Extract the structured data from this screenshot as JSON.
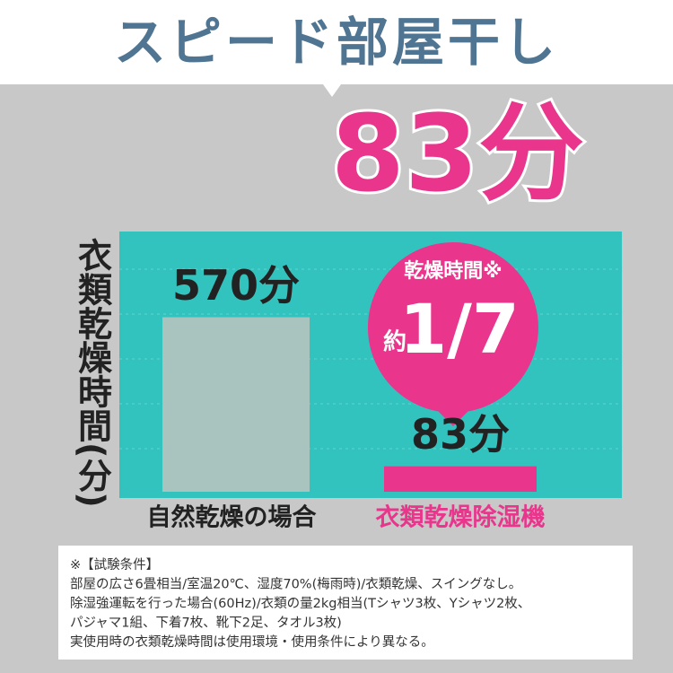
{
  "chart_data": {
    "type": "bar",
    "title": "スピード部屋干し",
    "headline": "83分",
    "ylabel": "衣類乾燥時間(分)",
    "categories": [
      "自然乾燥の場合",
      "衣類乾燥除湿機"
    ],
    "values": [
      570,
      83
    ],
    "value_labels": [
      "570分",
      "83分"
    ],
    "colors": [
      "#a9c3bf",
      "#e9358c"
    ],
    "ylim": [
      0,
      850
    ],
    "badge": {
      "caption": "乾燥時間※",
      "prefix": "約",
      "ratio": "1/7"
    },
    "footnotes": [
      "※【試験条件】",
      "部屋の広さ6畳相当/室温20℃、湿度70%(梅雨時)/衣類乾燥、スイングなし。",
      "除湿強運転を行った場合(60Hz)/衣類の量2kg相当(Tシャツ3枚、Yシャツ2枚、",
      "パジャマ1組、下着7枚、靴下2足、タオル3枚)",
      "実使用時の衣類乾燥時間は使用環境・使用条件により異なる。"
    ]
  }
}
